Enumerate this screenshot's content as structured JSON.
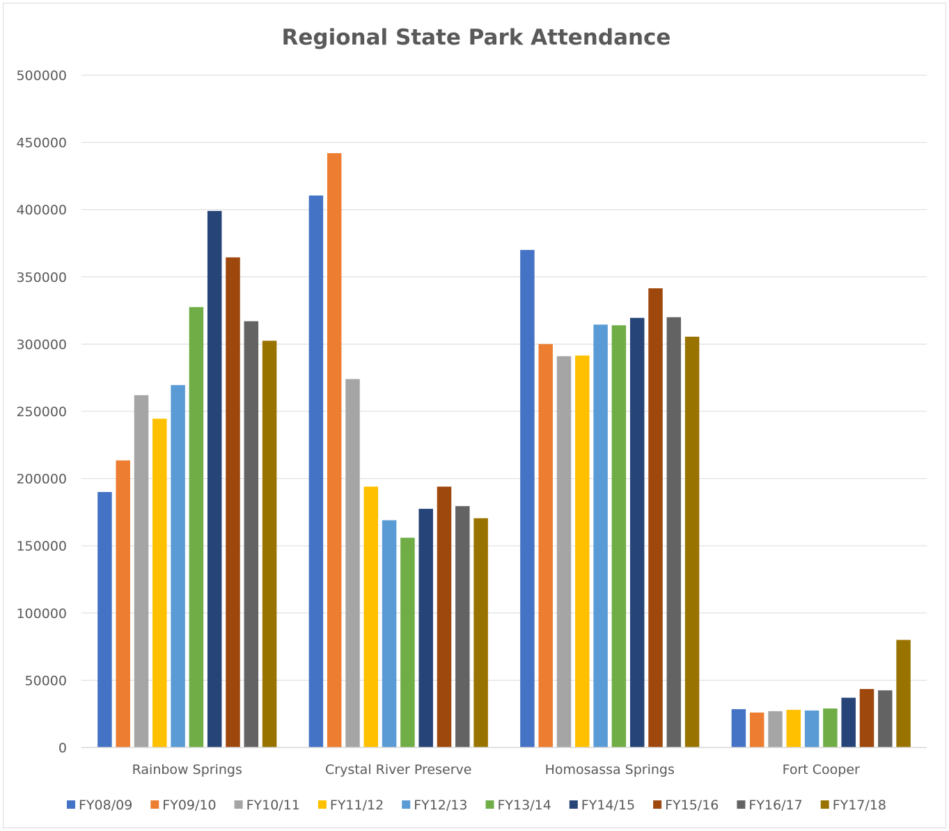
{
  "chart_data": {
    "type": "bar",
    "title": "Regional State Park Attendance",
    "xlabel": "",
    "ylabel": "",
    "ylim": [
      0,
      500000
    ],
    "yticks": [
      "0",
      "50000",
      "100000",
      "150000",
      "200000",
      "250000",
      "300000",
      "350000",
      "400000",
      "450000",
      "500000"
    ],
    "grid": true,
    "legend_position": "bottom",
    "categories": [
      "Rainbow Springs",
      "Crystal River Preserve",
      "Homosassa Springs",
      "Fort Cooper"
    ],
    "series": [
      {
        "name": "FY08/09",
        "color": "#4472c4",
        "values": [
          190000,
          410500,
          370000,
          28500
        ]
      },
      {
        "name": "FY09/10",
        "color": "#ed7d31",
        "values": [
          213500,
          442000,
          300000,
          26000
        ]
      },
      {
        "name": "FY10/11",
        "color": "#a5a5a5",
        "values": [
          262000,
          274000,
          291000,
          27000
        ]
      },
      {
        "name": "FY11/12",
        "color": "#ffc000",
        "values": [
          244500,
          194000,
          291500,
          28000
        ]
      },
      {
        "name": "FY12/13",
        "color": "#5b9bd5",
        "values": [
          269500,
          169000,
          314500,
          27500
        ]
      },
      {
        "name": "FY13/14",
        "color": "#70ad47",
        "values": [
          327500,
          156000,
          314000,
          29000
        ]
      },
      {
        "name": "FY14/15",
        "color": "#264478",
        "values": [
          399000,
          177500,
          319500,
          37000
        ]
      },
      {
        "name": "FY15/16",
        "color": "#9e480e",
        "values": [
          364500,
          194000,
          341500,
          43500
        ]
      },
      {
        "name": "FY16/17",
        "color": "#636363",
        "values": [
          317000,
          179500,
          320000,
          42500
        ]
      },
      {
        "name": "FY17/18",
        "color": "#997300",
        "values": [
          302500,
          170500,
          305500,
          80000
        ]
      }
    ]
  }
}
